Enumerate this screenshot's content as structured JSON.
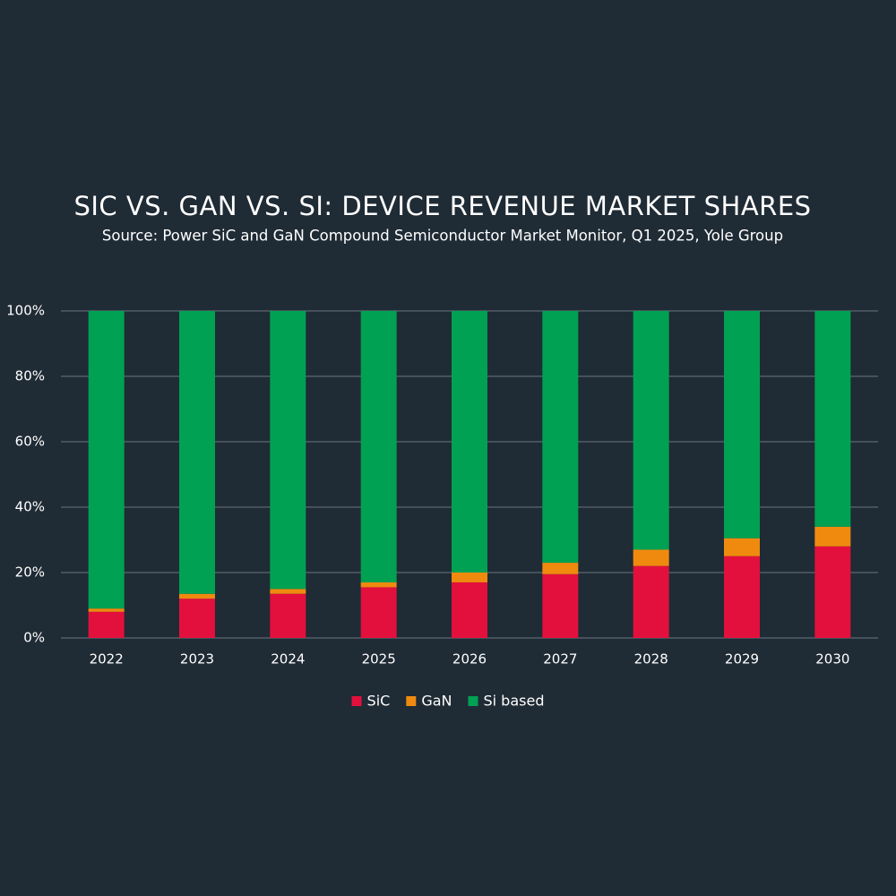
{
  "chart_data": {
    "type": "stacked_bar",
    "title": "SIC VS. GAN VS. SI: DEVICE REVENUE MARKET SHARES",
    "subtitle": "Source: Power SiC and GaN Compound Semiconductor Market Monitor, Q1 2025, Yole Group",
    "categories": [
      "2022",
      "2023",
      "2024",
      "2025",
      "2026",
      "2027",
      "2028",
      "2029",
      "2030"
    ],
    "series": [
      {
        "name": "SiC",
        "color": "#e3103d",
        "values": [
          8,
          12,
          13.5,
          15.5,
          17,
          19.5,
          22,
          25,
          28
        ]
      },
      {
        "name": "GaN",
        "color": "#ef8a0f",
        "values": [
          1,
          1.5,
          1.5,
          1.5,
          3,
          3.5,
          5,
          5.5,
          6
        ]
      },
      {
        "name": "Si based",
        "color": "#00a152",
        "values": [
          91,
          86.5,
          85,
          83,
          80,
          77,
          73,
          69.5,
          66
        ]
      }
    ],
    "ylim": [
      0,
      100
    ],
    "yticks": [
      {
        "value": 0,
        "label": "0%"
      },
      {
        "value": 20,
        "label": "20%"
      },
      {
        "value": 40,
        "label": "40%"
      },
      {
        "value": 60,
        "label": "60%"
      },
      {
        "value": 80,
        "label": "80%"
      },
      {
        "value": 100,
        "label": "100%"
      }
    ],
    "grid": true,
    "legend": "bottom"
  }
}
